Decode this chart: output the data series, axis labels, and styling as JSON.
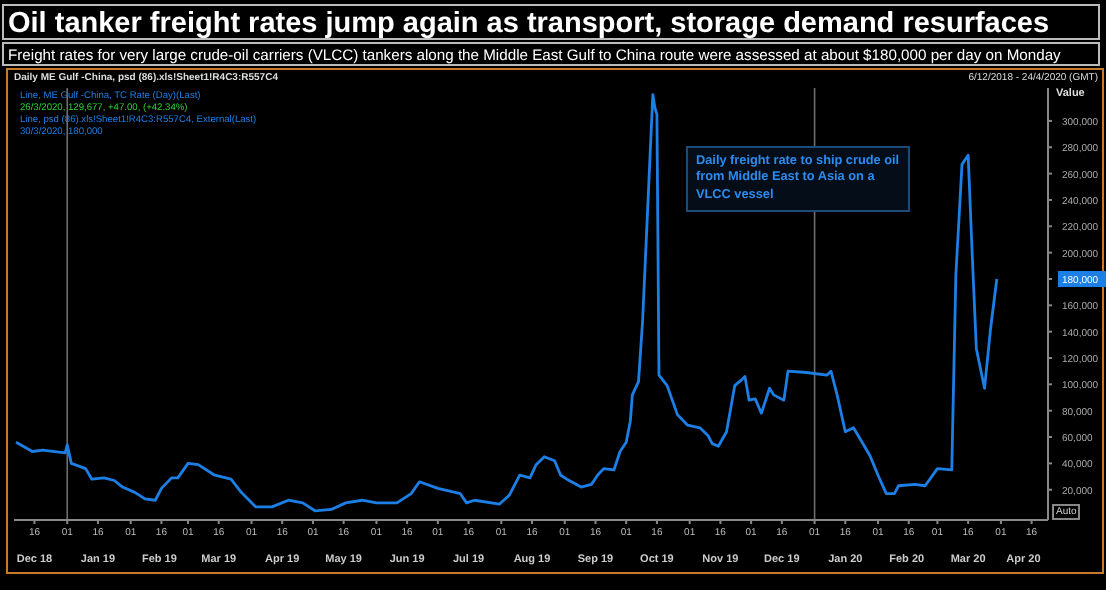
{
  "chart_data": {
    "type": "line",
    "title": "Oil tanker freight rates jump again as transport, storage demand resurfaces",
    "subtitle": "Freight rates for very large crude-oil carriers (VLCC) tankers along the Middle East Gulf to China route were assessed at about $180,000 per day on Monday",
    "ylabel": "Value",
    "annotations": [
      "Daily ME Gulf -China, psd (86).xls!Sheet1!R4C3:R557C4",
      "6/12/2018 - 24/4/2020 (GMT)",
      "Line, ME Gulf -China, TC Rate (Day)(Last)",
      "26/3/2020, 129,677, +47.00, (+42.34%)",
      "Line, psd (86).xls!Sheet1!R4C3:R557C4, External(Last)",
      "30/3/2020, 180,000",
      "Daily freight rate to ship crude oil from Middle East to Asia on a VLCC vessel",
      "Auto"
    ],
    "x": [
      "2018-12-07",
      "2018-12-15",
      "2018-12-20",
      "2018-12-31",
      "2019-01-01",
      "2019-01-03",
      "2019-01-10",
      "2019-01-13",
      "2019-01-19",
      "2019-01-24",
      "2019-01-28",
      "2019-02-03",
      "2019-02-08",
      "2019-02-13",
      "2019-02-16",
      "2019-02-21",
      "2019-02-24",
      "2019-03-01",
      "2019-03-06",
      "2019-03-14",
      "2019-03-22",
      "2019-03-27",
      "2019-04-03",
      "2019-04-11",
      "2019-04-19",
      "2019-04-26",
      "2019-05-02",
      "2019-05-10",
      "2019-05-17",
      "2019-05-25",
      "2019-06-01",
      "2019-06-11",
      "2019-06-18",
      "2019-06-22",
      "2019-07-01",
      "2019-07-12",
      "2019-07-15",
      "2019-07-19",
      "2019-07-31",
      "2019-08-05",
      "2019-08-10",
      "2019-08-15",
      "2019-08-18",
      "2019-08-22",
      "2019-08-27",
      "2019-08-30",
      "2019-09-02",
      "2019-09-09",
      "2019-09-14",
      "2019-09-17",
      "2019-09-20",
      "2019-09-25",
      "2019-09-28",
      "2019-10-01",
      "2019-10-03",
      "2019-10-04",
      "2019-10-07",
      "2019-10-09",
      "2019-10-14",
      "2019-10-15",
      "2019-10-16",
      "2019-10-17",
      "2019-10-21",
      "2019-10-26",
      "2019-10-31",
      "2019-11-06",
      "2019-11-10",
      "2019-11-12",
      "2019-11-15",
      "2019-11-19",
      "2019-11-23",
      "2019-11-26",
      "2019-11-28",
      "2019-11-30",
      "2019-12-03",
      "2019-12-06",
      "2019-12-10",
      "2019-12-12",
      "2019-12-17",
      "2019-12-19",
      "2019-12-28",
      "2020-01-07",
      "2020-01-09",
      "2020-01-12",
      "2020-01-16",
      "2020-01-20",
      "2020-01-25",
      "2020-01-28",
      "2020-02-01",
      "2020-02-05",
      "2020-02-09",
      "2020-02-11",
      "2020-02-19",
      "2020-02-24",
      "2020-03-01",
      "2020-03-08",
      "2020-03-10",
      "2020-03-13",
      "2020-03-16",
      "2020-03-18",
      "2020-03-20",
      "2020-03-24",
      "2020-03-27",
      "2020-03-30"
    ],
    "values": [
      56000,
      49000,
      50000,
      48000,
      54000,
      40000,
      36000,
      28000,
      29000,
      27000,
      22000,
      18000,
      13000,
      12000,
      21000,
      29000,
      29000,
      40000,
      39000,
      31000,
      28000,
      18000,
      7000,
      7000,
      12000,
      10000,
      4000,
      5000,
      10000,
      12000,
      10000,
      10000,
      17000,
      26000,
      21000,
      17000,
      10000,
      12000,
      9000,
      16000,
      31000,
      29000,
      39000,
      45000,
      42000,
      31000,
      28000,
      22000,
      24000,
      31000,
      36000,
      35000,
      49000,
      56000,
      72000,
      92000,
      102000,
      148000,
      320000,
      310000,
      305000,
      107000,
      99000,
      77000,
      69000,
      67000,
      61000,
      55000,
      53000,
      64000,
      99000,
      103000,
      106000,
      88000,
      89000,
      78000,
      97000,
      92000,
      88000,
      110000,
      109000,
      107000,
      110000,
      92000,
      64000,
      67000,
      54000,
      46000,
      31000,
      17000,
      17000,
      23000,
      24000,
      23000,
      36000,
      35000,
      183000,
      267000,
      274000,
      198000,
      127000,
      97000,
      143000,
      180000
    ],
    "color": "#1c7fe6",
    "xlim": [
      "2018-12-06",
      "2020-04-24"
    ],
    "xticks": [
      {
        "value": "2018-12-16",
        "label": "16"
      },
      {
        "value": "2019-01-01",
        "label": "01"
      },
      {
        "value": "2019-01-16",
        "label": "16"
      },
      {
        "value": "2019-02-01",
        "label": "01"
      },
      {
        "value": "2019-02-16",
        "label": "16"
      },
      {
        "value": "2019-03-01",
        "label": "01"
      },
      {
        "value": "2019-03-16",
        "label": "16"
      },
      {
        "value": "2019-04-01",
        "label": "01"
      },
      {
        "value": "2019-04-16",
        "label": "16"
      },
      {
        "value": "2019-05-01",
        "label": "01"
      },
      {
        "value": "2019-05-16",
        "label": "16"
      },
      {
        "value": "2019-06-01",
        "label": "01"
      },
      {
        "value": "2019-06-16",
        "label": "16"
      },
      {
        "value": "2019-07-01",
        "label": "01"
      },
      {
        "value": "2019-07-16",
        "label": "16"
      },
      {
        "value": "2019-08-01",
        "label": "01"
      },
      {
        "value": "2019-08-16",
        "label": "16"
      },
      {
        "value": "2019-09-01",
        "label": "01"
      },
      {
        "value": "2019-09-16",
        "label": "16"
      },
      {
        "value": "2019-10-01",
        "label": "01"
      },
      {
        "value": "2019-10-16",
        "label": "16"
      },
      {
        "value": "2019-11-01",
        "label": "01"
      },
      {
        "value": "2019-11-16",
        "label": "16"
      },
      {
        "value": "2019-12-01",
        "label": "01"
      },
      {
        "value": "2019-12-16",
        "label": "16"
      },
      {
        "value": "2020-01-01",
        "label": "01"
      },
      {
        "value": "2020-01-16",
        "label": "16"
      },
      {
        "value": "2020-02-01",
        "label": "01"
      },
      {
        "value": "2020-02-16",
        "label": "16"
      },
      {
        "value": "2020-03-01",
        "label": "01"
      },
      {
        "value": "2020-03-16",
        "label": "16"
      },
      {
        "value": "2020-04-01",
        "label": "01"
      },
      {
        "value": "2020-04-16",
        "label": "16"
      }
    ],
    "x2lim": [
      "2018-12-06",
      "2020-04-24"
    ],
    "x2ticks": [
      {
        "value": "2018-12-16",
        "label": "Dec 18"
      },
      {
        "value": "2019-01-16",
        "label": "Jan 19"
      },
      {
        "value": "2019-02-15",
        "label": "Feb 19"
      },
      {
        "value": "2019-03-16",
        "label": "Mar 19"
      },
      {
        "value": "2019-04-16",
        "label": "Apr 19"
      },
      {
        "value": "2019-05-16",
        "label": "May 19"
      },
      {
        "value": "2019-06-16",
        "label": "Jun 19"
      },
      {
        "value": "2019-07-16",
        "label": "Jul 19"
      },
      {
        "value": "2019-08-16",
        "label": "Aug 19"
      },
      {
        "value": "2019-09-16",
        "label": "Sep 19"
      },
      {
        "value": "2019-10-16",
        "label": "Oct 19"
      },
      {
        "value": "2019-11-16",
        "label": "Nov 19"
      },
      {
        "value": "2019-12-16",
        "label": "Dec 19"
      },
      {
        "value": "2020-01-16",
        "label": "Jan 20"
      },
      {
        "value": "2020-02-15",
        "label": "Feb 20"
      },
      {
        "value": "2020-03-16",
        "label": "Mar 20"
      },
      {
        "value": "2020-04-12",
        "label": "Apr 20"
      }
    ],
    "ylim": [
      -3000,
      325000
    ],
    "yticks": [
      {
        "value": 20000,
        "label": "20,000"
      },
      {
        "value": 40000,
        "label": "40,000"
      },
      {
        "value": 60000,
        "label": "60,000"
      },
      {
        "value": 80000,
        "label": "80,000"
      },
      {
        "value": 100000,
        "label": "100,000"
      },
      {
        "value": 120000,
        "label": "120,000"
      },
      {
        "value": 140000,
        "label": "140,000"
      },
      {
        "value": 160000,
        "label": "160,000"
      },
      {
        "value": 180000,
        "label": "180,000"
      },
      {
        "value": 200000,
        "label": "200,000"
      },
      {
        "value": 220000,
        "label": "220,000"
      },
      {
        "value": 240000,
        "label": "240,000"
      },
      {
        "value": 260000,
        "label": "260,000"
      },
      {
        "value": 280000,
        "label": "280,000"
      },
      {
        "value": 300000,
        "label": "300,000"
      }
    ],
    "ref_lines": [
      {
        "axis": "x",
        "value": "2019-01-01",
        "color": "#6e6e6e"
      },
      {
        "axis": "x",
        "value": "2020-01-01",
        "color": "#6e6e6e"
      }
    ]
  }
}
